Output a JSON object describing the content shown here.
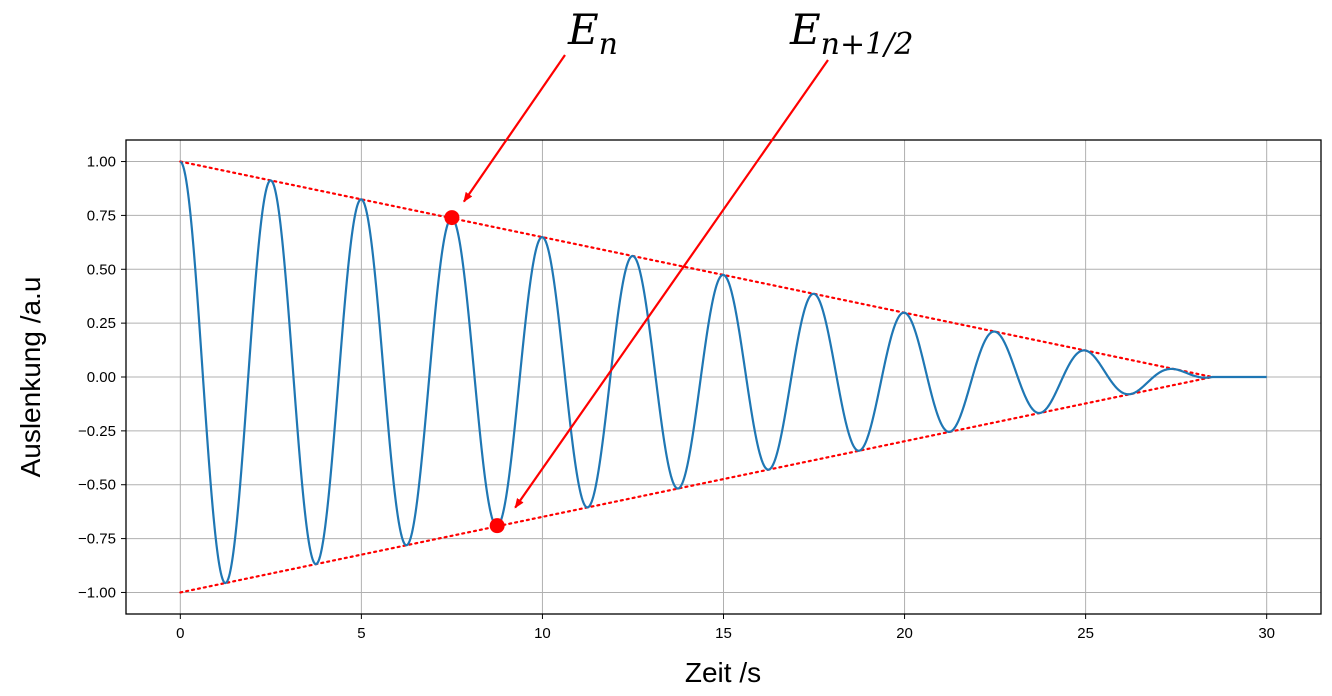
{
  "chart_data": {
    "type": "line",
    "xlabel": "Zeit /s",
    "ylabel": "Auslenkung /a.u",
    "xlim": [
      -1.5,
      31.5
    ],
    "ylim": [
      -1.1,
      1.1
    ],
    "x_ticks": [
      0,
      5,
      10,
      15,
      20,
      25,
      30
    ],
    "x_tick_labels": [
      "0",
      "5",
      "10",
      "15",
      "20",
      "25",
      "30"
    ],
    "y_ticks": [
      1.0,
      0.75,
      0.5,
      0.25,
      0.0,
      -0.25,
      -0.5,
      -0.75,
      -1.0
    ],
    "y_tick_labels": [
      "1.00",
      "0.75",
      "0.50",
      "0.25",
      "0.00",
      "−0.25",
      "−0.50",
      "−0.75",
      "−1.00"
    ],
    "grid": true,
    "series": [
      {
        "kind": "damped-oscillation",
        "color": "#1f77b4",
        "amplitude_start": 1.0,
        "period_s": 2.5,
        "decay_to_zero_at_s": 28.5,
        "x_end": 30,
        "peaks": [
          {
            "x": 0,
            "y": 1.0
          },
          {
            "x": 1.25,
            "y": -0.96
          },
          {
            "x": 2.5,
            "y": 0.91
          },
          {
            "x": 3.75,
            "y": -0.87
          },
          {
            "x": 5.0,
            "y": 0.82
          },
          {
            "x": 6.25,
            "y": -0.78
          },
          {
            "x": 7.5,
            "y": 0.74
          },
          {
            "x": 8.75,
            "y": -0.69
          },
          {
            "x": 10.0,
            "y": 0.65
          },
          {
            "x": 11.25,
            "y": -0.61
          },
          {
            "x": 12.5,
            "y": 0.56
          },
          {
            "x": 13.75,
            "y": -0.52
          },
          {
            "x": 15.0,
            "y": 0.47
          },
          {
            "x": 16.25,
            "y": -0.43
          },
          {
            "x": 17.5,
            "y": 0.39
          },
          {
            "x": 18.75,
            "y": -0.34
          },
          {
            "x": 20.0,
            "y": 0.3
          },
          {
            "x": 21.25,
            "y": -0.25
          },
          {
            "x": 22.5,
            "y": 0.21
          },
          {
            "x": 23.75,
            "y": -0.17
          },
          {
            "x": 25.0,
            "y": 0.12
          },
          {
            "x": 26.25,
            "y": -0.08
          },
          {
            "x": 27.5,
            "y": 0.04
          }
        ]
      },
      {
        "kind": "envelope-upper",
        "color": "#ff0000",
        "style": "dotted",
        "points": [
          {
            "x": 0,
            "y": 1.0
          },
          {
            "x": 28.5,
            "y": 0.0
          }
        ]
      },
      {
        "kind": "envelope-lower",
        "color": "#ff0000",
        "style": "dotted",
        "points": [
          {
            "x": 0,
            "y": -1.0
          },
          {
            "x": 28.5,
            "y": 0.0
          }
        ]
      }
    ],
    "markers": [
      {
        "x": 7.5,
        "y": 0.74,
        "color": "#ff0000"
      },
      {
        "x": 8.75,
        "y": -0.69,
        "color": "#ff0000"
      }
    ],
    "annotations": [
      {
        "base": "E",
        "sub": "n",
        "target": {
          "x": 7.5,
          "y": 0.74
        }
      },
      {
        "base": "E",
        "sub": "n+1/2",
        "target": {
          "x": 8.75,
          "y": -0.69
        }
      }
    ]
  }
}
